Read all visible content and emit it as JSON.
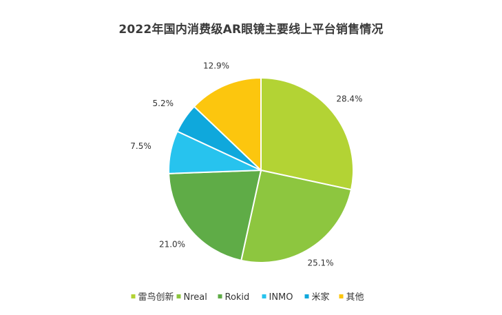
{
  "chart_data": {
    "type": "pie",
    "title": "2022年国内消费级AR眼镜主要线上平台销售情况",
    "categories": [
      "雷鸟创新",
      "Nreal",
      "Rokid",
      "INMO",
      "米家",
      "其他"
    ],
    "values": [
      28.4,
      25.1,
      21.0,
      7.5,
      5.2,
      12.9
    ],
    "value_labels": [
      "28.4%",
      "25.1%",
      "21.0%",
      "7.5%",
      "5.2%",
      "12.9%"
    ],
    "colors": [
      "#b3d334",
      "#8dc63f",
      "#5fac47",
      "#27c3ee",
      "#0fa8dc",
      "#fcc60e"
    ],
    "start_angle_deg": 0,
    "direction": "clockwise",
    "legend_position": "bottom"
  }
}
